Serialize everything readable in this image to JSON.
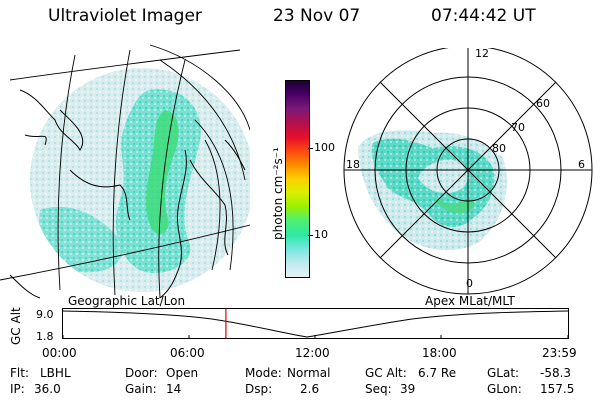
{
  "header": {
    "instrument": "Ultraviolet Imager",
    "date": "23 Nov 07",
    "time": "07:44:42 UT"
  },
  "colorbar": {
    "unit_label": "photon cm⁻²s⁻¹",
    "tick_100": "100",
    "tick_10": "10",
    "colors": [
      "#1a0033",
      "#4b0066",
      "#7a1a7a",
      "#b01050",
      "#e8102a",
      "#ff4a10",
      "#ff8c00",
      "#ffd000",
      "#d8f000",
      "#9cf000",
      "#4ff070",
      "#2ee8a8",
      "#7be8e0",
      "#bfeaf0",
      "#e8f2f4"
    ]
  },
  "left_map": {
    "caption": "Geographic Lat/Lon"
  },
  "right_map": {
    "caption": "Apex MLat/MLT",
    "mlt_labels": {
      "top": "12",
      "left": "18",
      "right": "6",
      "bottom": "0"
    },
    "mlat_labels": {
      "outer": "60",
      "mid": "70",
      "inner": "80"
    }
  },
  "timeline": {
    "y_axis_label": "GC Alt",
    "y_tick_top": "9.0",
    "y_tick_bottom": "1.8",
    "x_ticks": [
      "00:00",
      "06:00",
      "12:00",
      "18:00",
      "23:59"
    ],
    "cursor_hour": 7.75
  },
  "info": {
    "flt_label": "Flt:",
    "flt_value": "LBHL",
    "ip_label": "IP:",
    "ip_value": "36.0",
    "door_label": "Door:",
    "door_value": "Open",
    "gain_label": "Gain:",
    "gain_value": "14",
    "mode_label": "Mode:",
    "mode_value": "Normal",
    "dsp_label": "Dsp:",
    "dsp_value": "2.6",
    "gcalt_label": "GC Alt:",
    "gcalt_value": "6.7 Re",
    "seq_label": "Seq:",
    "seq_value": "39",
    "glat_label": "GLat:",
    "glat_value": "-58.3",
    "glon_label": "GLon:",
    "glon_value": "157.5"
  },
  "colors": {
    "cursor": "#e00000",
    "coast": "#000000"
  }
}
